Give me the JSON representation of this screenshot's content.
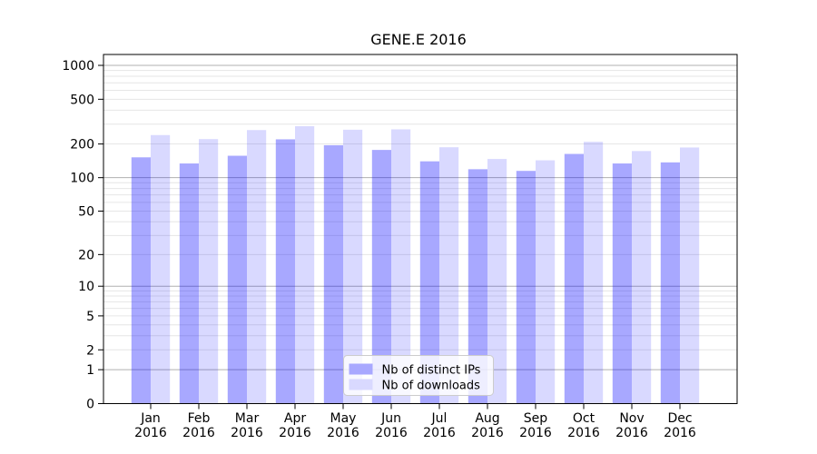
{
  "chart_data": {
    "type": "bar",
    "title": "GENE.E 2016",
    "categories": [
      "Jan",
      "Feb",
      "Mar",
      "Apr",
      "May",
      "Jun",
      "Jul",
      "Aug",
      "Sep",
      "Oct",
      "Nov",
      "Dec"
    ],
    "category_year": "2016",
    "series": [
      {
        "name": "Nb of distinct IPs",
        "color_hex": "#a8a8ff",
        "fill_rgba": "rgba(0,0,255,0.34)",
        "values": [
          152,
          134,
          157,
          220,
          195,
          177,
          140,
          119,
          115,
          163,
          134,
          137
        ]
      },
      {
        "name": "Nb of downloads",
        "color_hex": "#d9d9ff",
        "fill_rgba": "rgba(0,0,255,0.15)",
        "values": [
          240,
          221,
          266,
          288,
          268,
          270,
          187,
          147,
          143,
          209,
          173,
          186
        ]
      }
    ],
    "yscale": "symlog",
    "yticks": [
      0,
      1,
      2,
      5,
      10,
      20,
      50,
      100,
      200,
      500,
      1000
    ],
    "ylim": [
      0,
      1280
    ],
    "xlabel": "",
    "ylabel": "",
    "grid": {
      "on": true,
      "major_at": [
        1,
        10,
        100,
        1000
      ],
      "minor_multiples": [
        2,
        3,
        4,
        5,
        6,
        7,
        8,
        9
      ],
      "major_color": "#b0b0b0",
      "minor_color": "#e6e6e6"
    },
    "legend": {
      "position": "lower-center",
      "background": "rgba(255,255,255,0.8)",
      "border_color": "#cccccc"
    },
    "axis_color": "#000000"
  }
}
